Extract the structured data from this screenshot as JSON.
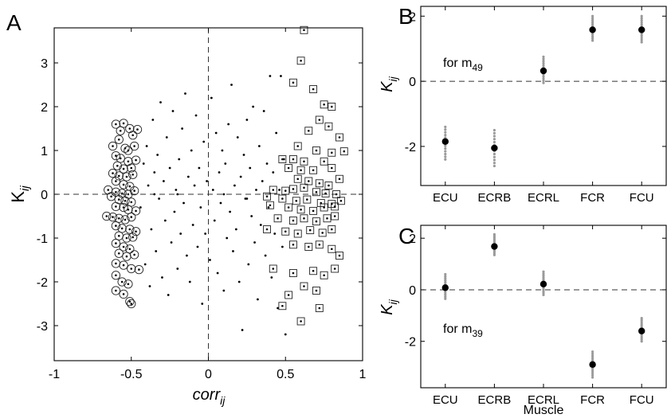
{
  "panels": {
    "A": {
      "letter": "A",
      "xlabel_main": "corr",
      "xlabel_sub": "ij",
      "ylabel_main": "K",
      "ylabel_sub": "ij",
      "xticks": [
        "-1",
        "-0.5",
        "0",
        "0.5",
        "1"
      ],
      "yticks": [
        "-3",
        "-2",
        "-1",
        "0",
        "1",
        "2",
        "3"
      ]
    },
    "B": {
      "letter": "B",
      "annotation_main": "for m",
      "annotation_sub": "49",
      "ylabel_main": "K",
      "ylabel_sub": "ij",
      "yticks": [
        "-2",
        "0",
        "2"
      ],
      "categories": [
        "ECU",
        "ECRB",
        "ECRL",
        "FCR",
        "FCU"
      ]
    },
    "C": {
      "letter": "C",
      "annotation_main": "for m",
      "annotation_sub": "39",
      "ylabel_main": "K",
      "ylabel_sub": "ij",
      "yticks": [
        "-2",
        "0",
        "2"
      ],
      "categories": [
        "ECU",
        "ECRB",
        "ECRL",
        "FCR",
        "FCU"
      ],
      "xlabel": "Muscle"
    }
  },
  "chart_data": [
    {
      "type": "scatter",
      "panel": "A",
      "xlabel": "corr_ij",
      "ylabel": "K_ij",
      "xlim": [
        -1,
        1
      ],
      "ylim": [
        -3.8,
        3.8
      ],
      "reference_lines": {
        "x": 0,
        "y": 0,
        "style": "dashed"
      },
      "series": [
        {
          "marker": "circled-dot",
          "points": [
            [
              -0.6,
              1.6
            ],
            [
              -0.57,
              1.45
            ],
            [
              -0.55,
              1.62
            ],
            [
              -0.51,
              1.5
            ],
            [
              -0.49,
              1.35
            ],
            [
              -0.46,
              1.48
            ],
            [
              -0.58,
              1.25
            ],
            [
              -0.62,
              1.1
            ],
            [
              -0.54,
              1.05
            ],
            [
              -0.52,
              1.0
            ],
            [
              -0.48,
              1.1
            ],
            [
              -0.6,
              0.88
            ],
            [
              -0.57,
              0.82
            ],
            [
              -0.52,
              0.75
            ],
            [
              -0.47,
              0.78
            ],
            [
              -0.59,
              0.65
            ],
            [
              -0.55,
              0.58
            ],
            [
              -0.5,
              0.6
            ],
            [
              -0.62,
              0.48
            ],
            [
              -0.58,
              0.42
            ],
            [
              -0.53,
              0.4
            ],
            [
              -0.49,
              0.45
            ],
            [
              -0.6,
              0.3
            ],
            [
              -0.55,
              0.22
            ],
            [
              -0.51,
              0.18
            ],
            [
              -0.65,
              0.1
            ],
            [
              -0.6,
              0.05
            ],
            [
              -0.56,
              0.02
            ],
            [
              -0.52,
              0.0
            ],
            [
              -0.48,
              0.08
            ],
            [
              -0.63,
              -0.05
            ],
            [
              -0.58,
              -0.12
            ],
            [
              -0.54,
              -0.15
            ],
            [
              -0.5,
              -0.18
            ],
            [
              -0.6,
              -0.28
            ],
            [
              -0.55,
              -0.3
            ],
            [
              -0.52,
              -0.35
            ],
            [
              -0.47,
              -0.38
            ],
            [
              -0.66,
              -0.5
            ],
            [
              -0.62,
              -0.52
            ],
            [
              -0.58,
              -0.55
            ],
            [
              -0.54,
              -0.58
            ],
            [
              -0.5,
              -0.52
            ],
            [
              -0.6,
              -0.72
            ],
            [
              -0.56,
              -0.78
            ],
            [
              -0.51,
              -0.8
            ],
            [
              -0.47,
              -0.85
            ],
            [
              -0.58,
              -0.95
            ],
            [
              -0.53,
              -1.0
            ],
            [
              -0.49,
              -0.98
            ],
            [
              -0.6,
              -1.12
            ],
            [
              -0.55,
              -1.2
            ],
            [
              -0.51,
              -1.25
            ],
            [
              -0.58,
              -1.35
            ],
            [
              -0.53,
              -1.42
            ],
            [
              -0.48,
              -1.38
            ],
            [
              -0.6,
              -1.58
            ],
            [
              -0.55,
              -1.62
            ],
            [
              -0.5,
              -1.7
            ],
            [
              -0.45,
              -1.72
            ],
            [
              -0.6,
              -1.85
            ],
            [
              -0.56,
              -2.0
            ],
            [
              -0.52,
              -2.05
            ],
            [
              -0.6,
              -2.2
            ],
            [
              -0.55,
              -2.28
            ],
            [
              -0.51,
              -2.45
            ],
            [
              -0.5,
              -2.5
            ]
          ]
        },
        {
          "marker": "dot",
          "points": [
            [
              -0.44,
              -0.3
            ],
            [
              -0.42,
              0.7
            ],
            [
              -0.41,
              -1.6
            ],
            [
              -0.4,
              1.1
            ],
            [
              -0.39,
              0.2
            ],
            [
              -0.38,
              -2.1
            ],
            [
              -0.37,
              -0.8
            ],
            [
              -0.36,
              1.7
            ],
            [
              -0.35,
              0.5
            ],
            [
              -0.34,
              -1.3
            ],
            [
              -0.33,
              0.9
            ],
            [
              -0.32,
              -0.1
            ],
            [
              -0.31,
              2.1
            ],
            [
              -0.3,
              -1.9
            ],
            [
              -0.29,
              0.3
            ],
            [
              -0.28,
              -0.6
            ],
            [
              -0.27,
              1.3
            ],
            [
              -0.26,
              -2.3
            ],
            [
              -0.25,
              0.6
            ],
            [
              -0.24,
              -1.1
            ],
            [
              -0.23,
              1.9
            ],
            [
              -0.22,
              -0.4
            ],
            [
              -0.21,
              0.1
            ],
            [
              -0.2,
              -1.7
            ],
            [
              -0.19,
              0.8
            ],
            [
              -0.18,
              -0.9
            ],
            [
              -0.17,
              1.5
            ],
            [
              -0.16,
              -0.2
            ],
            [
              -0.15,
              2.3
            ],
            [
              -0.14,
              -1.4
            ],
            [
              -0.13,
              0.4
            ],
            [
              -0.12,
              -2.0
            ],
            [
              -0.11,
              1.0
            ],
            [
              -0.1,
              -0.7
            ],
            [
              -0.09,
              0.2
            ],
            [
              -0.08,
              1.8
            ],
            [
              -0.07,
              -1.2
            ],
            [
              -0.06,
              0.6
            ],
            [
              -0.05,
              -0.3
            ],
            [
              -0.04,
              -2.5
            ],
            [
              -0.03,
              1.2
            ],
            [
              -0.02,
              -0.9
            ],
            [
              -0.01,
              0.3
            ],
            [
              0.01,
              -1.5
            ],
            [
              0.02,
              2.2
            ],
            [
              0.03,
              0.1
            ],
            [
              0.04,
              -0.6
            ],
            [
              0.05,
              1.4
            ],
            [
              0.06,
              -1.8
            ],
            [
              0.07,
              0.5
            ],
            [
              0.08,
              -0.2
            ],
            [
              0.09,
              1.0
            ],
            [
              0.1,
              -2.2
            ],
            [
              0.11,
              0.7
            ],
            [
              0.12,
              -1.0
            ],
            [
              0.13,
              1.6
            ],
            [
              0.14,
              -0.4
            ],
            [
              0.15,
              2.5
            ],
            [
              0.16,
              -1.3
            ],
            [
              0.17,
              0.2
            ],
            [
              0.18,
              -0.8
            ],
            [
              0.19,
              1.3
            ],
            [
              0.2,
              -2.0
            ],
            [
              0.21,
              0.4
            ],
            [
              0.22,
              -3.1
            ],
            [
              0.23,
              0.9
            ],
            [
              0.24,
              -0.1
            ],
            [
              0.25,
              1.7
            ],
            [
              0.26,
              -1.6
            ],
            [
              0.27,
              0.6
            ],
            [
              0.28,
              -0.5
            ],
            [
              0.29,
              2.0
            ],
            [
              0.3,
              -1.1
            ],
            [
              0.31,
              0.1
            ],
            [
              0.32,
              -2.4
            ],
            [
              0.33,
              1.1
            ],
            [
              0.34,
              -0.7
            ],
            [
              0.35,
              0.3
            ],
            [
              0.36,
              1.9
            ],
            [
              0.37,
              -1.4
            ],
            [
              0.38,
              0.7
            ],
            [
              0.39,
              -0.3
            ],
            [
              0.4,
              2.7
            ],
            [
              0.41,
              -1.9
            ],
            [
              0.42,
              0.5
            ],
            [
              0.43,
              -0.9
            ],
            [
              0.44,
              1.4
            ],
            [
              0.45,
              -2.6
            ],
            [
              0.46,
              0.1
            ],
            [
              0.47,
              2.7
            ],
            [
              0.48,
              -1.2
            ],
            [
              0.49,
              0.8
            ],
            [
              0.5,
              -3.2
            ],
            [
              -0.35,
              0.0
            ],
            [
              -0.2,
              0.0
            ],
            [
              0.1,
              0.0
            ],
            [
              0.25,
              -0.1
            ]
          ]
        },
        {
          "marker": "boxed-dot",
          "points": [
            [
              0.62,
              3.75
            ],
            [
              0.6,
              3.05
            ],
            [
              0.55,
              2.55
            ],
            [
              0.68,
              2.4
            ],
            [
              0.75,
              2.05
            ],
            [
              0.8,
              2.0
            ],
            [
              0.72,
              1.7
            ],
            [
              0.78,
              1.55
            ],
            [
              0.85,
              1.3
            ],
            [
              0.65,
              1.45
            ],
            [
              0.58,
              1.1
            ],
            [
              0.7,
              1.0
            ],
            [
              0.8,
              0.95
            ],
            [
              0.88,
              0.98
            ],
            [
              0.55,
              0.8
            ],
            [
              0.62,
              0.75
            ],
            [
              0.75,
              0.75
            ],
            [
              0.48,
              0.8
            ],
            [
              0.52,
              0.6
            ],
            [
              0.6,
              0.55
            ],
            [
              0.68,
              0.55
            ],
            [
              0.8,
              0.6
            ],
            [
              0.58,
              0.35
            ],
            [
              0.65,
              0.3
            ],
            [
              0.72,
              0.25
            ],
            [
              0.78,
              0.2
            ],
            [
              0.85,
              0.35
            ],
            [
              0.42,
              0.1
            ],
            [
              0.5,
              0.08
            ],
            [
              0.55,
              0.12
            ],
            [
              0.62,
              0.15
            ],
            [
              0.7,
              0.05
            ],
            [
              0.76,
              0.02
            ],
            [
              0.83,
              0.0
            ],
            [
              0.38,
              -0.05
            ],
            [
              0.48,
              -0.1
            ],
            [
              0.57,
              -0.15
            ],
            [
              0.64,
              -0.12
            ],
            [
              0.73,
              -0.2
            ],
            [
              0.8,
              -0.22
            ],
            [
              0.86,
              -0.15
            ],
            [
              0.4,
              -0.25
            ],
            [
              0.52,
              -0.3
            ],
            [
              0.6,
              -0.35
            ],
            [
              0.68,
              -0.38
            ],
            [
              0.75,
              -0.3
            ],
            [
              0.82,
              -0.28
            ],
            [
              0.45,
              -0.55
            ],
            [
              0.55,
              -0.6
            ],
            [
              0.62,
              -0.55
            ],
            [
              0.7,
              -0.62
            ],
            [
              0.77,
              -0.55
            ],
            [
              0.82,
              -0.5
            ],
            [
              0.38,
              -0.8
            ],
            [
              0.5,
              -0.85
            ],
            [
              0.58,
              -0.9
            ],
            [
              0.66,
              -0.82
            ],
            [
              0.74,
              -0.88
            ],
            [
              0.8,
              -0.8
            ],
            [
              0.55,
              -1.15
            ],
            [
              0.65,
              -1.2
            ],
            [
              0.72,
              -1.15
            ],
            [
              0.8,
              -1.25
            ],
            [
              0.85,
              -1.4
            ],
            [
              0.42,
              -1.7
            ],
            [
              0.55,
              -1.8
            ],
            [
              0.68,
              -1.75
            ],
            [
              0.75,
              -1.85
            ],
            [
              0.62,
              -2.1
            ],
            [
              0.7,
              -2.2
            ],
            [
              0.52,
              -2.3
            ],
            [
              0.48,
              -2.55
            ],
            [
              0.72,
              -2.6
            ],
            [
              0.6,
              -2.9
            ],
            [
              0.82,
              -1.7
            ]
          ]
        }
      ]
    },
    {
      "type": "scatter",
      "panel": "B",
      "categories": [
        "ECU",
        "ECRB",
        "ECRL",
        "FCR",
        "FCU"
      ],
      "ylabel": "K_ij",
      "ylim": [
        -3.2,
        2.3
      ],
      "mean": [
        -1.85,
        -2.05,
        0.32,
        1.58,
        1.58
      ],
      "spread": [
        [
          -2.4,
          -1.4
        ],
        [
          -2.6,
          -1.5
        ],
        [
          -0.05,
          0.75
        ],
        [
          1.25,
          2.0
        ],
        [
          1.2,
          2.0
        ]
      ],
      "reference_line_y": 0
    },
    {
      "type": "scatter",
      "panel": "C",
      "categories": [
        "ECU",
        "ECRB",
        "ECRL",
        "FCR",
        "FCU"
      ],
      "xlabel": "Muscle",
      "ylabel": "K_ij",
      "ylim": [
        -3.8,
        2.5
      ],
      "mean": [
        0.08,
        1.68,
        0.22,
        -2.9,
        -1.6
      ],
      "spread": [
        [
          -0.35,
          0.6
        ],
        [
          1.35,
          2.15
        ],
        [
          -0.2,
          0.7
        ],
        [
          -3.4,
          -2.4
        ],
        [
          -2.0,
          -1.1
        ]
      ],
      "reference_line_y": 0
    }
  ]
}
